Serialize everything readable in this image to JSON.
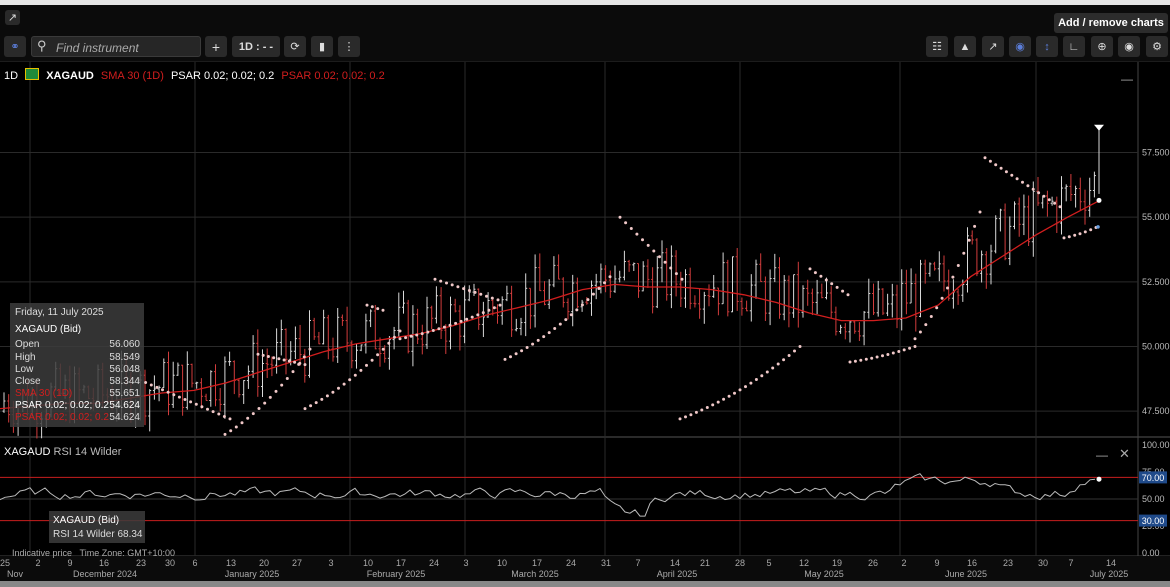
{
  "toolbar": {
    "find_placeholder": "Find instrument",
    "interval_label": "1D : - -",
    "add_remove_label": "Add / remove charts",
    "plus_label": "+"
  },
  "legend": {
    "interval": "1D",
    "symbol": "XAGAUD",
    "sma": "SMA 30 (1D)",
    "psar1": "PSAR 0.02; 0.02; 0.2",
    "psar2": "PSAR 0.02; 0.02; 0.2"
  },
  "tooltip": {
    "date": "Friday, 11 July 2025",
    "title": "XAGAUD (Bid)",
    "rows": [
      {
        "label": "Open",
        "value": "56.060"
      },
      {
        "label": "High",
        "value": "58.549"
      },
      {
        "label": "Low",
        "value": "56.048"
      },
      {
        "label": "Close",
        "value": "58.344"
      },
      {
        "label": "SMA 30 (1D)",
        "value": "55.651"
      },
      {
        "label": "PSAR 0.02; 0.02; 0.2",
        "value": "54.624"
      },
      {
        "label": "PSAR 0.02; 0.02; 0.2",
        "value": "54.624"
      }
    ]
  },
  "rsi_panel": {
    "label": "XAGAUD",
    "indicator": "RSI 14 Wilder",
    "tooltip_title": "XAGAUD (Bid)",
    "tooltip_value": "RSI 14 Wilder 68.34"
  },
  "footer": {
    "indicative": "Indicative price",
    "timezone": "Time Zone: GMT+10:00"
  },
  "colors": {
    "sma": "#d21e1e",
    "candle_up": "#d9d9d9",
    "candle_down": "#d23c3c",
    "psar": "#f0c8c8",
    "rsi_line": "#bbbbbb",
    "rsi_band": "#c81e1e"
  },
  "chart_data": [
    {
      "type": "line",
      "description_series": "price",
      "y_ticks": [
        "47.500",
        "50.000",
        "52.500",
        "55.000",
        "57.500"
      ],
      "ylim": [
        46.5,
        61.0
      ],
      "x_ticks_day": [
        "25",
        "2",
        "9",
        "16",
        "23",
        "30",
        "6",
        "13",
        "20",
        "27",
        "3",
        "10",
        "17",
        "24",
        "3",
        "10",
        "17",
        "24",
        "31",
        "7",
        "14",
        "21",
        "28",
        "5",
        "12",
        "19",
        "26",
        "2",
        "9",
        "16",
        "23",
        "30",
        "7",
        "14"
      ],
      "x_ticks_month": [
        "Nov",
        "December 2024",
        "January 2025",
        "February 2025",
        "March 2025",
        "April 2025",
        "May 2025",
        "June 2025",
        "July 2025"
      ],
      "series": [
        {
          "name": "SMA 30 (1D)",
          "values": [
            47.6,
            47.7,
            47.8,
            47.8,
            48.0,
            48.2,
            48.3,
            48.6,
            49.0,
            49.4,
            49.8,
            50.1,
            50.3,
            50.5,
            50.8,
            51.2,
            51.5,
            51.8,
            52.2,
            52.4,
            52.3,
            52.3,
            52.2,
            52.0,
            51.7,
            51.3,
            51.0,
            51.0,
            51.1,
            51.6,
            52.7,
            53.5,
            54.3,
            55.0,
            55.651
          ]
        }
      ],
      "last_close": 58.344
    },
    {
      "type": "line",
      "title": "RSI 14 Wilder",
      "ylim": [
        0,
        100
      ],
      "y_ticks": [
        "0.00",
        "25.00",
        "50.00",
        "75.00",
        "100.00"
      ],
      "bands": [
        30,
        70
      ],
      "band_labels": [
        "30.00",
        "70.00"
      ],
      "last_value": 68.34
    }
  ]
}
